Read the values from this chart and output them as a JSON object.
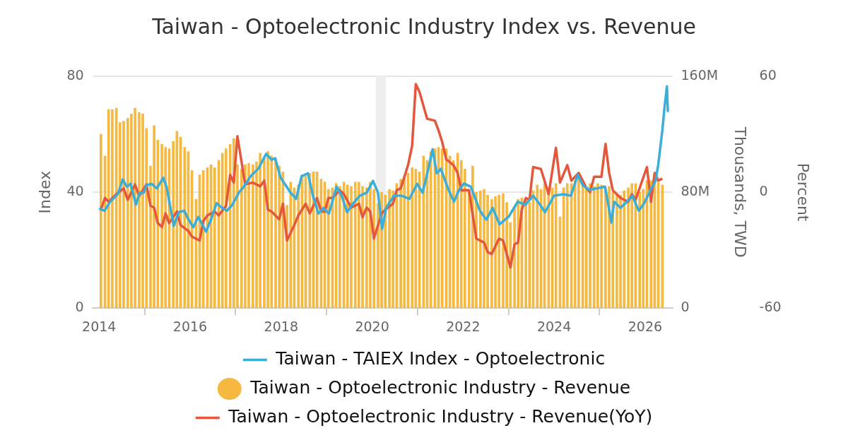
{
  "chart_data": {
    "type": "bar",
    "title": "Taiwan - Optoelectronic Industry Index vs. Revenue",
    "xlim": [
      2013.85,
      2026.6
    ],
    "xticks": [
      2014,
      2016,
      2018,
      2020,
      2022,
      2024,
      2026
    ],
    "ylim": [
      0,
      80
    ],
    "yticks": [
      0,
      40,
      80
    ],
    "ylabel": "Index",
    "y2lim": [
      0,
      160
    ],
    "y2ticks": [
      0,
      {
        "value": 80,
        "label": "80M"
      },
      {
        "value": 160,
        "label": "160M"
      }
    ],
    "y2label": "Thousands, TWD",
    "y3lim": [
      -60,
      60
    ],
    "y3ticks": [
      -60,
      0,
      60
    ],
    "y3label": "Percent",
    "grid": "y",
    "legend": "bottom",
    "bands": [
      {
        "axis": "x",
        "from": 2020.08,
        "to": 2020.3,
        "color": "#eeeeee"
      }
    ],
    "series": [
      {
        "name": "Taiwan - TAIEX Index - Optoelectronic",
        "type": "line",
        "axis": "y",
        "color": "#3aaed8",
        "x": [
          2014.0,
          2014.12,
          2014.24,
          2014.41,
          2014.52,
          2014.61,
          2014.69,
          2014.81,
          2014.89,
          2014.98,
          2015.04,
          2015.15,
          2015.27,
          2015.41,
          2015.49,
          2015.64,
          2015.75,
          2015.87,
          2015.95,
          2016.07,
          2016.18,
          2016.35,
          2016.47,
          2016.58,
          2016.7,
          2016.81,
          2016.93,
          2017.07,
          2017.18,
          2017.33,
          2017.5,
          2017.67,
          2017.79,
          2017.87,
          2017.99,
          2018.1,
          2018.21,
          2018.33,
          2018.45,
          2018.59,
          2018.7,
          2018.82,
          2018.93,
          2019.05,
          2019.22,
          2019.33,
          2019.45,
          2019.56,
          2019.73,
          2019.88,
          2020.02,
          2020.13,
          2020.22,
          2020.31,
          2020.48,
          2020.65,
          2020.82,
          2020.99,
          2021.11,
          2021.22,
          2021.33,
          2021.42,
          2021.51,
          2021.68,
          2021.8,
          2021.91,
          2022.02,
          2022.17,
          2022.37,
          2022.51,
          2022.65,
          2022.8,
          2023.0,
          2023.2,
          2023.37,
          2023.54,
          2023.69,
          2023.8,
          2024.0,
          2024.2,
          2024.37,
          2024.52,
          2024.63,
          2024.77,
          2024.94,
          2025.12,
          2025.26,
          2025.32,
          2025.46,
          2025.6,
          2025.72,
          2025.86,
          2025.98,
          2026.12,
          2026.23,
          2026.29,
          2026.38,
          2026.43,
          2026.48,
          2026.5
        ],
        "values": [
          34.4,
          33.6,
          36.7,
          39.3,
          44.4,
          41.9,
          42.9,
          35.7,
          39.8,
          39.8,
          42.4,
          42.9,
          41.3,
          45,
          41.3,
          28.4,
          33.1,
          33.6,
          31,
          27.9,
          31.5,
          26.4,
          31,
          36.2,
          34.6,
          33.6,
          35.7,
          39.8,
          41.9,
          45.5,
          48.1,
          53.2,
          51.2,
          51.7,
          45,
          42.4,
          39.8,
          37.7,
          45.5,
          46.5,
          38.8,
          32.6,
          34.6,
          32.6,
          41.9,
          38.8,
          33.1,
          35.7,
          38.8,
          39.8,
          43.9,
          39.8,
          27.4,
          34.6,
          38.8,
          38.8,
          37.7,
          42.9,
          39.8,
          47,
          54.8,
          46.5,
          48.1,
          40.8,
          36.7,
          40.8,
          43,
          41.9,
          33.6,
          30.5,
          34.6,
          28.9,
          31.5,
          36.7,
          35.7,
          38.8,
          35.7,
          33.1,
          38.8,
          39.3,
          38.8,
          46,
          42.4,
          40.8,
          41.3,
          41.9,
          29.5,
          36.7,
          34.6,
          36.7,
          38.8,
          33.6,
          36.2,
          40.8,
          43.9,
          49.6,
          61.5,
          69.8,
          76.5,
          67.7
        ]
      },
      {
        "name": "Taiwan - Optoelectronic Industry - Revenue",
        "axis": "y2",
        "color": "#f5b942",
        "x": [
          2014.04,
          2014.13,
          2014.21,
          2014.29,
          2014.38,
          2014.46,
          2014.54,
          2014.63,
          2014.71,
          2014.79,
          2014.88,
          2014.96,
          2015.04,
          2015.13,
          2015.21,
          2015.29,
          2015.38,
          2015.46,
          2015.54,
          2015.63,
          2015.71,
          2015.79,
          2015.88,
          2015.96,
          2016.04,
          2016.13,
          2016.21,
          2016.29,
          2016.38,
          2016.46,
          2016.54,
          2016.63,
          2016.71,
          2016.79,
          2016.88,
          2016.96,
          2017.04,
          2017.13,
          2017.21,
          2017.29,
          2017.38,
          2017.46,
          2017.54,
          2017.63,
          2017.71,
          2017.79,
          2017.88,
          2017.96,
          2018.04,
          2018.13,
          2018.21,
          2018.29,
          2018.38,
          2018.46,
          2018.54,
          2018.63,
          2018.71,
          2018.79,
          2018.88,
          2018.96,
          2019.04,
          2019.13,
          2019.21,
          2019.29,
          2019.38,
          2019.46,
          2019.54,
          2019.63,
          2019.71,
          2019.79,
          2019.88,
          2019.96,
          2020.04,
          2020.13,
          2020.21,
          2020.29,
          2020.38,
          2020.46,
          2020.54,
          2020.63,
          2020.71,
          2020.79,
          2020.88,
          2020.96,
          2021.04,
          2021.13,
          2021.21,
          2021.29,
          2021.38,
          2021.46,
          2021.54,
          2021.63,
          2021.71,
          2021.79,
          2021.88,
          2021.96,
          2022.04,
          2022.13,
          2022.21,
          2022.29,
          2022.38,
          2022.46,
          2022.54,
          2022.63,
          2022.71,
          2022.79,
          2022.88,
          2022.96,
          2023.04,
          2023.13,
          2023.21,
          2023.29,
          2023.38,
          2023.46,
          2023.54,
          2023.63,
          2023.71,
          2023.79,
          2023.88,
          2023.96,
          2024.04,
          2024.13,
          2024.21,
          2024.29,
          2024.38,
          2024.46,
          2024.54,
          2024.63,
          2024.71,
          2024.79,
          2024.88,
          2024.96,
          2025.04,
          2025.13,
          2025.21,
          2025.29,
          2025.38,
          2025.46,
          2025.54,
          2025.63,
          2025.71,
          2025.79,
          2025.88,
          2025.96,
          2026.04,
          2026.13,
          2026.21,
          2026.29,
          2026.38
        ],
        "values": [
          120,
          105,
          137,
          137,
          138,
          128,
          129,
          131,
          134,
          138,
          135,
          134,
          124,
          98,
          126,
          116,
          113,
          111,
          110,
          115,
          122,
          118,
          111,
          108,
          95,
          75,
          92,
          95,
          97,
          99,
          97,
          102,
          107,
          110,
          113,
          117,
          99,
          96,
          99,
          100,
          99,
          101,
          107,
          104,
          108,
          105,
          103,
          98,
          94,
          71,
          87,
          83,
          85,
          92,
          91,
          93,
          94,
          94,
          89,
          87,
          82,
          83,
          86,
          84,
          87,
          85,
          84,
          87,
          87,
          84,
          83,
          87,
          82,
          72,
          80,
          78,
          82,
          81,
          86,
          89,
          90,
          93,
          97,
          96,
          94,
          105,
          102,
          108,
          110,
          111,
          110,
          110,
          105,
          102,
          107,
          102,
          96,
          82,
          98,
          80,
          81,
          82,
          78,
          75,
          77,
          78,
          79,
          73,
          59,
          70,
          75,
          76,
          76,
          73,
          81,
          85,
          82,
          86,
          82,
          83,
          86,
          63,
          83,
          86,
          86,
          88,
          89,
          87,
          84,
          86,
          84,
          86,
          85,
          82,
          84,
          80,
          79,
          78,
          81,
          83,
          86,
          86,
          80,
          82,
          88,
          88,
          88,
          87,
          85
        ]
      },
      {
        "name": "Taiwan - Optoelectronic Industry - Revenue(YoY)",
        "type": "line",
        "axis": "y3",
        "color": "#e4573d",
        "x": [
          2014.04,
          2014.13,
          2014.21,
          2014.38,
          2014.54,
          2014.63,
          2014.79,
          2014.88,
          2015.04,
          2015.13,
          2015.21,
          2015.29,
          2015.38,
          2015.46,
          2015.54,
          2015.71,
          2015.79,
          2015.96,
          2016.04,
          2016.21,
          2016.29,
          2016.38,
          2016.54,
          2016.63,
          2016.79,
          2016.88,
          2016.96,
          2017.04,
          2017.21,
          2017.38,
          2017.54,
          2017.63,
          2017.71,
          2017.79,
          2017.96,
          2018.04,
          2018.13,
          2018.29,
          2018.38,
          2018.54,
          2018.63,
          2018.79,
          2018.88,
          2018.96,
          2019.04,
          2019.13,
          2019.29,
          2019.38,
          2019.54,
          2019.71,
          2019.79,
          2019.88,
          2019.96,
          2020.04,
          2020.21,
          2020.29,
          2020.46,
          2020.54,
          2020.63,
          2020.71,
          2020.79,
          2020.88,
          2020.96,
          2021.04,
          2021.21,
          2021.38,
          2021.46,
          2021.54,
          2021.63,
          2021.79,
          2021.88,
          2021.96,
          2022.04,
          2022.13,
          2022.29,
          2022.46,
          2022.54,
          2022.63,
          2022.79,
          2022.88,
          2023.04,
          2023.13,
          2023.21,
          2023.29,
          2023.38,
          2023.46,
          2023.54,
          2023.71,
          2023.88,
          2024.04,
          2024.13,
          2024.29,
          2024.38,
          2024.54,
          2024.63,
          2024.71,
          2024.79,
          2024.88,
          2025.04,
          2025.13,
          2025.21,
          2025.29,
          2025.46,
          2025.63,
          2025.71,
          2025.79,
          2026.04,
          2026.13,
          2026.21,
          2026.29,
          2026.38
        ],
        "values": [
          -9,
          -3,
          -5,
          -1,
          2,
          -4,
          4,
          -2,
          4,
          -7,
          -8,
          -16,
          -18,
          -11,
          -16,
          -10,
          -17,
          -20,
          -23,
          -25,
          -15,
          -12,
          -10,
          -12,
          -7,
          9,
          5,
          29,
          4,
          5,
          3,
          6,
          -9,
          -10,
          -14,
          -6,
          -25,
          -17,
          -12,
          -6,
          -11,
          -3,
          -10,
          -10,
          -3,
          -3,
          1,
          -1,
          -8,
          -6,
          -13,
          -8,
          -10,
          -24,
          -11,
          -9,
          -6,
          1,
          2,
          8,
          14,
          24,
          56,
          52,
          38,
          37,
          32,
          26,
          17,
          14,
          10,
          1,
          1,
          1,
          -24,
          -26,
          -31,
          -32,
          -24,
          -25,
          -39,
          -27,
          -26,
          -9,
          -3,
          -4,
          13,
          12,
          -1,
          23,
          5,
          14,
          6,
          10,
          6,
          2,
          0,
          8,
          8,
          25,
          10,
          1,
          -3,
          -5,
          -1,
          -4,
          13,
          -5,
          10,
          6,
          7
        ]
      }
    ]
  }
}
